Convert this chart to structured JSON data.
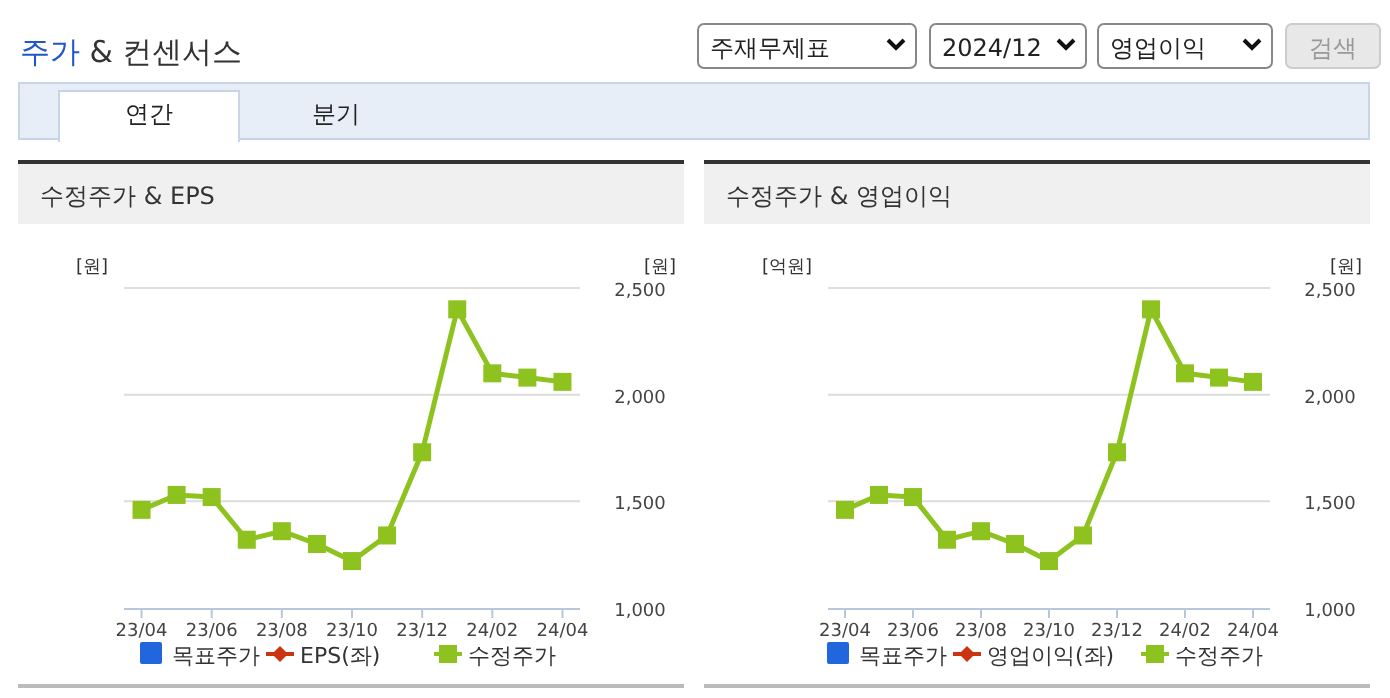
{
  "chart_data": [
    {
      "type": "other",
      "title": "주가 & 컨센서스",
      "annotations": [
        "주재무제표",
        "2024/12",
        "영업이익",
        "검색",
        "연간",
        "분기"
      ]
    },
    {
      "type": "line",
      "title": "수정주가 & EPS",
      "ylabel": "[원]",
      "y2label": "[원]",
      "categories": [
        "23/04",
        null,
        "23/06",
        null,
        "23/08",
        null,
        "23/10",
        null,
        "23/12",
        null,
        "24/02",
        null,
        "24/04"
      ],
      "series": [
        {
          "name": "목표주가",
          "type": "bar",
          "color": "#2266dd",
          "values": [
            null,
            null,
            null,
            null,
            null,
            null,
            null,
            null,
            null,
            null,
            null,
            null,
            null
          ]
        },
        {
          "name": "EPS(좌)",
          "type": "line",
          "color": "#cc3311",
          "marker": "diamond",
          "values": [
            null,
            null,
            null,
            null,
            null,
            null,
            null,
            null,
            null,
            null,
            null,
            null,
            null
          ]
        },
        {
          "name": "수정주가",
          "type": "line",
          "color": "#8dc21f",
          "marker": "square",
          "axis": "y2",
          "values": [
            1460,
            1530,
            1520,
            1320,
            1360,
            1300,
            1220,
            1340,
            1730,
            2400,
            2100,
            2080,
            2060
          ]
        }
      ],
      "y2lim": [
        1000,
        2500
      ],
      "y2ticks": [
        {
          "value": 1000,
          "label": "1,000"
        },
        {
          "value": 1500,
          "label": "1,500"
        },
        {
          "value": 2000,
          "label": "2,000"
        },
        {
          "value": 2500,
          "label": "2,500"
        }
      ],
      "grid": "y",
      "legend": "bottom"
    },
    {
      "type": "line",
      "title": "수정주가 & 영업이익",
      "ylabel": "[억원]",
      "y2label": "[원]",
      "categories": [
        "23/04",
        null,
        "23/06",
        null,
        "23/08",
        null,
        "23/10",
        null,
        "23/12",
        null,
        "24/02",
        null,
        "24/04"
      ],
      "series": [
        {
          "name": "목표주가",
          "type": "bar",
          "color": "#2266dd",
          "values": [
            null,
            null,
            null,
            null,
            null,
            null,
            null,
            null,
            null,
            null,
            null,
            null,
            null
          ]
        },
        {
          "name": "영업이익(좌)",
          "type": "line",
          "color": "#cc3311",
          "marker": "diamond",
          "values": [
            null,
            null,
            null,
            null,
            null,
            null,
            null,
            null,
            null,
            null,
            null,
            null,
            null
          ]
        },
        {
          "name": "수정주가",
          "type": "line",
          "color": "#8dc21f",
          "marker": "square",
          "axis": "y2",
          "values": [
            1460,
            1530,
            1520,
            1320,
            1360,
            1300,
            1220,
            1340,
            1730,
            2400,
            2100,
            2080,
            2060
          ]
        }
      ],
      "y2lim": [
        1000,
        2500
      ],
      "y2ticks": [
        {
          "value": 1000,
          "label": "1,000"
        },
        {
          "value": 1500,
          "label": "1,500"
        },
        {
          "value": 2000,
          "label": "2,000"
        },
        {
          "value": 2500,
          "label": "2,500"
        }
      ],
      "grid": "y",
      "legend": "bottom"
    }
  ]
}
